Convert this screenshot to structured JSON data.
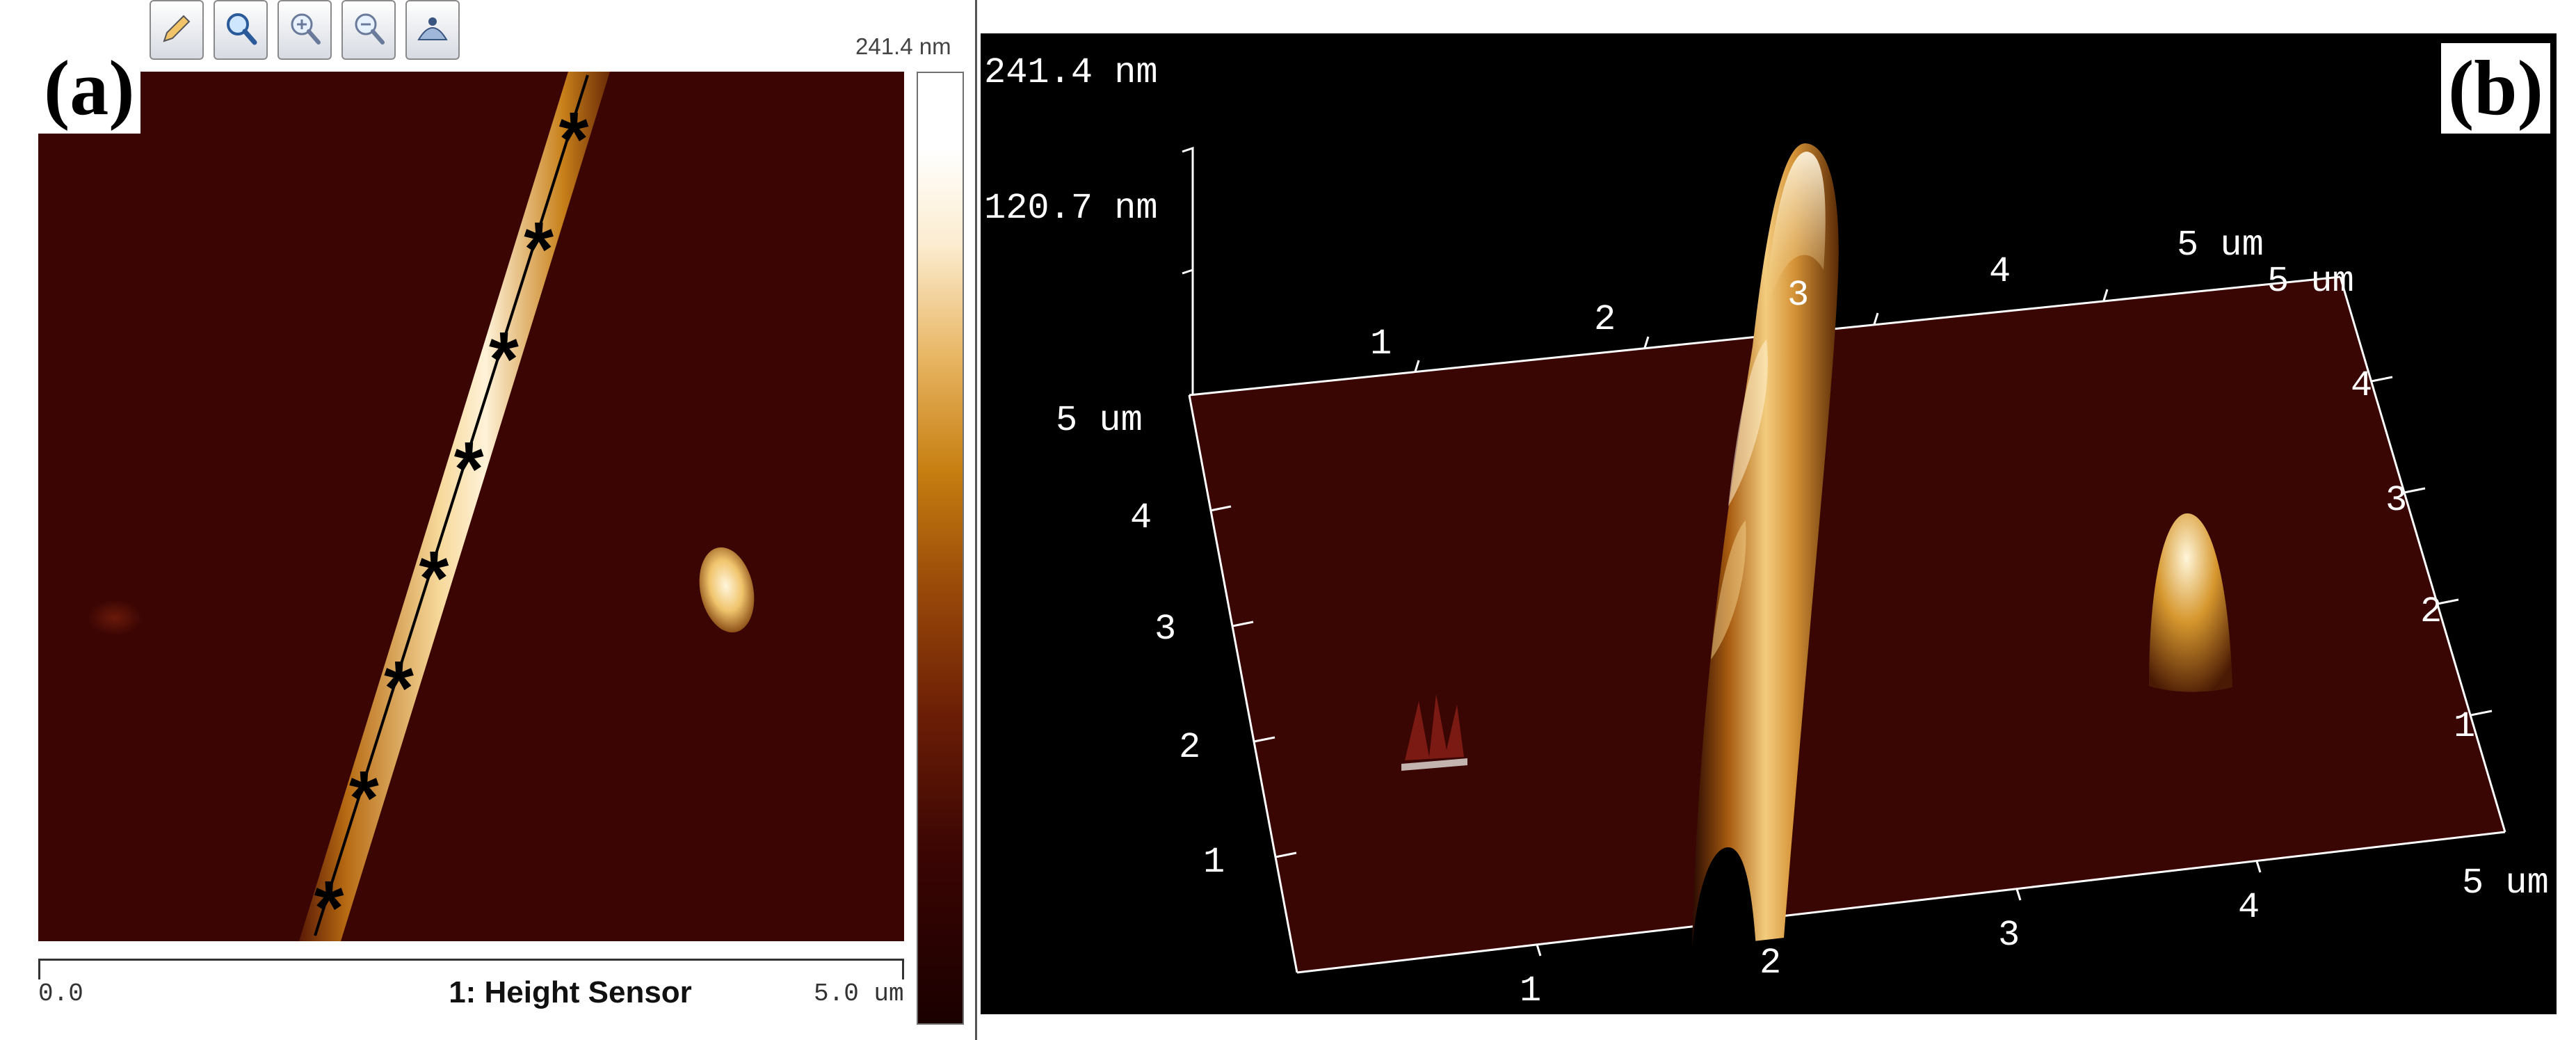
{
  "panel_a": {
    "label": "(a)",
    "toolbar": [
      {
        "name": "edit-icon"
      },
      {
        "name": "zoom-icon"
      },
      {
        "name": "zoom-in-icon"
      },
      {
        "name": "zoom-out-icon"
      },
      {
        "name": "pan-icon"
      }
    ],
    "colorbar": {
      "top_label": "241.4 nm",
      "colors": [
        "#1a0000",
        "#3b0503",
        "#9a4a08",
        "#e8b562",
        "#ffffff"
      ]
    },
    "scale": {
      "left": "0.0",
      "right": "5.0 um"
    },
    "channel_name": "1: Height Sensor",
    "markers": {
      "symbol": "*",
      "count": 8
    },
    "background_color": "#3a0503"
  },
  "panel_b": {
    "label": "(b)",
    "z_labels": [
      "241.4 nm",
      "120.7 nm"
    ],
    "left_corner_label": "5 um",
    "far_edge_ticks": [
      "1",
      "2",
      "3",
      "4",
      "5 um"
    ],
    "right_edge_ticks": [
      "5 um",
      "4",
      "3",
      "2",
      "1"
    ],
    "left_edge_ticks": [
      "4",
      "3",
      "2",
      "1"
    ],
    "front_edge_ticks": [
      "1",
      "2",
      "3",
      "4",
      "5 um"
    ],
    "plane_color": "#3a0604"
  }
}
